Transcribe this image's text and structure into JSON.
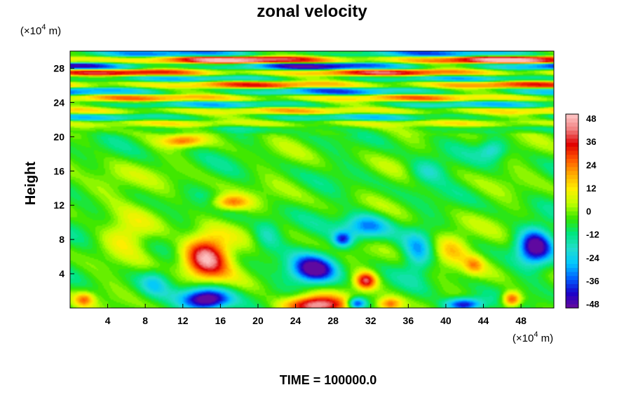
{
  "chart_data": {
    "type": "heatmap",
    "title": "zonal velocity",
    "xlabel": "",
    "ylabel": "Height",
    "x_unit_prefix": "(×10",
    "x_unit_exp": "4",
    "x_unit_suffix": " m)",
    "y_unit_prefix": "(×10",
    "y_unit_exp": "4",
    "y_unit_suffix": " m)",
    "xlim": [
      0,
      51.5
    ],
    "ylim": [
      0,
      30
    ],
    "x_ticks": [
      4,
      8,
      12,
      16,
      20,
      24,
      28,
      32,
      36,
      40,
      44,
      48
    ],
    "x_tick_labels": [
      "4",
      "8",
      "12",
      "16",
      "20",
      "24",
      "28",
      "32",
      "36",
      "40",
      "44",
      "48"
    ],
    "y_ticks": [
      4,
      8,
      12,
      16,
      20,
      24,
      28
    ],
    "y_tick_labels": [
      "4",
      "8",
      "12",
      "16",
      "20",
      "24",
      "28"
    ],
    "colorbar": {
      "range": [
        -48,
        48
      ],
      "ticks": [
        48,
        36,
        24,
        12,
        0,
        -12,
        -24,
        -36,
        -48
      ],
      "tick_labels": [
        "48",
        "36",
        "24",
        "12",
        "0",
        "-12",
        "-24",
        "-36",
        "-48"
      ],
      "colors": [
        "#6a0a9a",
        "#1a00c8",
        "#0060ff",
        "#00c8ff",
        "#22ddcc",
        "#00e680",
        "#33e600",
        "#bfff00",
        "#ffee00",
        "#ffaa00",
        "#ff5500",
        "#e00000",
        "#f08080",
        "#ffc8c8"
      ]
    },
    "features": [
      {
        "x": 14.5,
        "y": 6.0,
        "u": 50,
        "sx": 2.4,
        "sy": 2.5
      },
      {
        "x": 14.5,
        "y": 1.0,
        "u": -52,
        "sx": 2.5,
        "sy": 1.3
      },
      {
        "x": 26.0,
        "y": 0.3,
        "u": 52,
        "sx": 3.2,
        "sy": 1.1
      },
      {
        "x": 26.0,
        "y": 4.5,
        "u": -44,
        "sx": 2.4,
        "sy": 1.7
      },
      {
        "x": 31.5,
        "y": 3.2,
        "u": 40,
        "sx": 1.1,
        "sy": 1.0
      },
      {
        "x": 30.5,
        "y": 0.5,
        "u": -40,
        "sx": 1.0,
        "sy": 0.7
      },
      {
        "x": 34.0,
        "y": 0.4,
        "u": 28,
        "sx": 1.3,
        "sy": 0.8
      },
      {
        "x": 42.0,
        "y": 0.4,
        "u": -42,
        "sx": 2.0,
        "sy": 0.8
      },
      {
        "x": 47.0,
        "y": 1.0,
        "u": 36,
        "sx": 1.0,
        "sy": 0.9
      },
      {
        "x": 49.5,
        "y": 7.2,
        "u": -44,
        "sx": 1.8,
        "sy": 2.0
      },
      {
        "x": 29.0,
        "y": 8.0,
        "u": -30,
        "sx": 1.0,
        "sy": 0.9
      },
      {
        "x": 31.5,
        "y": 9.5,
        "u": -28,
        "sx": 2.5,
        "sy": 1.5
      },
      {
        "x": 37.0,
        "y": 6.5,
        "u": -20,
        "sx": 1.5,
        "sy": 2.5
      },
      {
        "x": 40.5,
        "y": 7.0,
        "u": 18,
        "sx": 2.0,
        "sy": 2.0
      },
      {
        "x": 43.0,
        "y": 5.0,
        "u": 16,
        "sx": 1.0,
        "sy": 1.0
      },
      {
        "x": 17.0,
        "y": 12.3,
        "u": 28,
        "sx": 2.0,
        "sy": 0.9
      },
      {
        "x": 12.0,
        "y": 19.5,
        "u": 26,
        "sx": 2.2,
        "sy": 0.7
      },
      {
        "x": 6.0,
        "y": 8.5,
        "u": 14,
        "sx": 2.5,
        "sy": 2.0
      },
      {
        "x": 21.0,
        "y": 8.5,
        "u": -14,
        "sx": 1.5,
        "sy": 2.0
      },
      {
        "x": 1.5,
        "y": 1.0,
        "u": 22,
        "sx": 1.0,
        "sy": 0.8
      },
      {
        "x": 45.0,
        "y": 18.5,
        "u": -18,
        "sx": 1.5,
        "sy": 1.2
      },
      {
        "x": 38.0,
        "y": 16.0,
        "u": -14,
        "sx": 2.0,
        "sy": 1.5
      },
      {
        "x": 9.0,
        "y": 3.0,
        "u": -14,
        "sx": 1.5,
        "sy": 1.5
      },
      {
        "x": 4.0,
        "y": 14.5,
        "u": 10,
        "sx": 3.0,
        "sy": 2.0
      }
    ],
    "layers": [
      {
        "y": 29.7,
        "u": -30
      },
      {
        "y": 29.0,
        "u": 44
      },
      {
        "y": 28.2,
        "u": -42
      },
      {
        "y": 27.5,
        "u": 34
      },
      {
        "y": 26.8,
        "u": -22
      },
      {
        "y": 26.1,
        "u": 26
      },
      {
        "y": 25.3,
        "u": -30
      },
      {
        "y": 24.5,
        "u": 20
      },
      {
        "y": 23.8,
        "u": -22
      },
      {
        "y": 23.0,
        "u": 14
      },
      {
        "y": 22.3,
        "u": -20
      },
      {
        "y": 21.5,
        "u": 8
      },
      {
        "y": 20.8,
        "u": -12
      }
    ],
    "grid": false,
    "legend_placement": "right"
  },
  "footer": {
    "time_label": "TIME = 100000.0"
  }
}
